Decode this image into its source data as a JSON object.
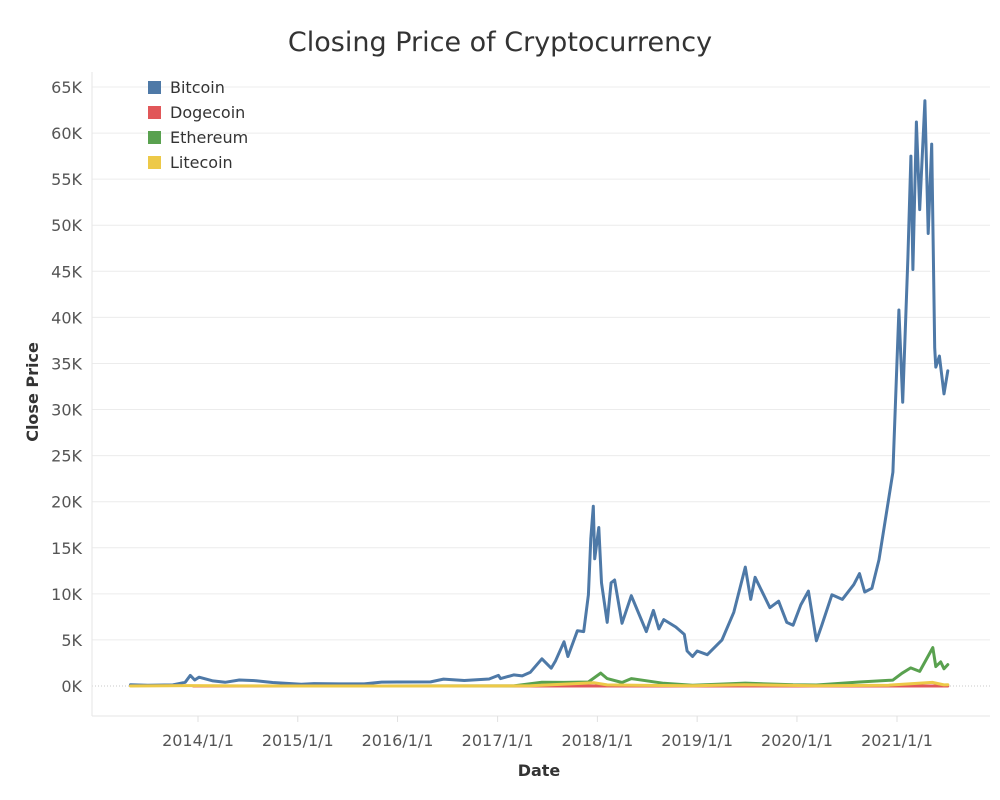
{
  "chart_data": {
    "type": "line",
    "title": "Closing Price of Cryptocurrency",
    "xlabel": "Date",
    "ylabel": "Close Price",
    "x_ticks": [
      "2014/1/1",
      "2015/1/1",
      "2016/1/1",
      "2017/1/1",
      "2018/1/1",
      "2019/1/1",
      "2020/1/1",
      "2021/1/1"
    ],
    "y_ticks": [
      "0K",
      "5K",
      "10K",
      "15K",
      "20K",
      "25K",
      "30K",
      "35K",
      "40K",
      "45K",
      "50K",
      "55K",
      "60K",
      "65K"
    ],
    "xlim": [
      "2013-04-01",
      "2021-07-31"
    ],
    "ylim": [
      -1000,
      65000
    ],
    "grid": true,
    "legend_position": "top-left",
    "series": [
      {
        "name": "Bitcoin",
        "color": "#4e79a7",
        "points": [
          [
            "2013-04-29",
            140
          ],
          [
            "2013-07-01",
            90
          ],
          [
            "2013-10-01",
            120
          ],
          [
            "2013-11-15",
            400
          ],
          [
            "2013-12-04",
            1150
          ],
          [
            "2013-12-20",
            650
          ],
          [
            "2014-01-05",
            950
          ],
          [
            "2014-02-25",
            550
          ],
          [
            "2014-04-10",
            400
          ],
          [
            "2014-06-01",
            650
          ],
          [
            "2014-08-01",
            580
          ],
          [
            "2014-10-01",
            380
          ],
          [
            "2015-01-14",
            180
          ],
          [
            "2015-03-01",
            260
          ],
          [
            "2015-06-01",
            230
          ],
          [
            "2015-09-01",
            230
          ],
          [
            "2015-11-04",
            420
          ],
          [
            "2016-01-01",
            430
          ],
          [
            "2016-05-01",
            450
          ],
          [
            "2016-06-17",
            750
          ],
          [
            "2016-09-01",
            600
          ],
          [
            "2016-12-01",
            760
          ],
          [
            "2017-01-04",
            1150
          ],
          [
            "2017-01-12",
            800
          ],
          [
            "2017-03-01",
            1200
          ],
          [
            "2017-04-01",
            1100
          ],
          [
            "2017-05-01",
            1500
          ],
          [
            "2017-06-12",
            2950
          ],
          [
            "2017-07-16",
            1930
          ],
          [
            "2017-08-01",
            2750
          ],
          [
            "2017-09-01",
            4800
          ],
          [
            "2017-09-15",
            3200
          ],
          [
            "2017-10-20",
            6000
          ],
          [
            "2017-11-12",
            5900
          ],
          [
            "2017-11-29",
            9900
          ],
          [
            "2017-12-08",
            16000
          ],
          [
            "2017-12-17",
            19500
          ],
          [
            "2017-12-22",
            13800
          ],
          [
            "2018-01-06",
            17200
          ],
          [
            "2018-01-16",
            11200
          ],
          [
            "2018-02-06",
            6900
          ],
          [
            "2018-02-20",
            11200
          ],
          [
            "2018-03-05",
            11500
          ],
          [
            "2018-04-01",
            6800
          ],
          [
            "2018-05-05",
            9800
          ],
          [
            "2018-06-29",
            5900
          ],
          [
            "2018-07-25",
            8200
          ],
          [
            "2018-08-14",
            6200
          ],
          [
            "2018-09-01",
            7200
          ],
          [
            "2018-10-15",
            6400
          ],
          [
            "2018-11-15",
            5600
          ],
          [
            "2018-11-25",
            3800
          ],
          [
            "2018-12-15",
            3200
          ],
          [
            "2019-01-01",
            3800
          ],
          [
            "2019-02-07",
            3400
          ],
          [
            "2019-04-02",
            5000
          ],
          [
            "2019-05-15",
            8000
          ],
          [
            "2019-06-26",
            12900
          ],
          [
            "2019-07-16",
            9400
          ],
          [
            "2019-08-01",
            11800
          ],
          [
            "2019-09-24",
            8500
          ],
          [
            "2019-10-26",
            9200
          ],
          [
            "2019-11-25",
            6900
          ],
          [
            "2019-12-18",
            6600
          ],
          [
            "2020-01-15",
            8800
          ],
          [
            "2020-02-12",
            10300
          ],
          [
            "2020-03-12",
            4900
          ],
          [
            "2020-04-01",
            6600
          ],
          [
            "2020-05-08",
            9900
          ],
          [
            "2020-06-15",
            9400
          ],
          [
            "2020-07-27",
            11000
          ],
          [
            "2020-08-17",
            12200
          ],
          [
            "2020-09-05",
            10200
          ],
          [
            "2020-10-01",
            10600
          ],
          [
            "2020-10-27",
            13700
          ],
          [
            "2020-11-25",
            19100
          ],
          [
            "2020-12-17",
            23200
          ],
          [
            "2021-01-08",
            40800
          ],
          [
            "2021-01-22",
            30800
          ],
          [
            "2021-02-10",
            46500
          ],
          [
            "2021-02-21",
            57500
          ],
          [
            "2021-02-28",
            45200
          ],
          [
            "2021-03-13",
            61200
          ],
          [
            "2021-03-25",
            51700
          ],
          [
            "2021-04-13",
            63500
          ],
          [
            "2021-04-25",
            49100
          ],
          [
            "2021-05-08",
            58800
          ],
          [
            "2021-05-19",
            36700
          ],
          [
            "2021-05-23",
            34600
          ],
          [
            "2021-06-05",
            35800
          ],
          [
            "2021-06-22",
            31700
          ],
          [
            "2021-07-06",
            34200
          ]
        ]
      },
      {
        "name": "Dogecoin",
        "color": "#e15759",
        "points": [
          [
            "2013-12-15",
            0.0006
          ],
          [
            "2017-06-01",
            0.003
          ],
          [
            "2018-01-07",
            0.017
          ],
          [
            "2019-06-01",
            0.003
          ],
          [
            "2021-01-28",
            0.03
          ],
          [
            "2021-05-08",
            0.68
          ],
          [
            "2021-07-06",
            0.22
          ]
        ]
      },
      {
        "name": "Ethereum",
        "color": "#59a14f",
        "points": [
          [
            "2015-08-08",
            3
          ],
          [
            "2016-06-17",
            12
          ],
          [
            "2017-03-01",
            16
          ],
          [
            "2017-06-12",
            400
          ],
          [
            "2017-09-01",
            390
          ],
          [
            "2017-11-29",
            430
          ],
          [
            "2018-01-13",
            1400
          ],
          [
            "2018-02-06",
            800
          ],
          [
            "2018-04-01",
            380
          ],
          [
            "2018-05-05",
            800
          ],
          [
            "2018-09-01",
            290
          ],
          [
            "2018-12-15",
            85
          ],
          [
            "2019-06-26",
            320
          ],
          [
            "2019-12-18",
            130
          ],
          [
            "2020-03-12",
            110
          ],
          [
            "2020-08-17",
            430
          ],
          [
            "2020-12-17",
            640
          ],
          [
            "2021-01-19",
            1380
          ],
          [
            "2021-02-20",
            1960
          ],
          [
            "2021-03-25",
            1580
          ],
          [
            "2021-05-12",
            4170
          ],
          [
            "2021-05-23",
            2100
          ],
          [
            "2021-06-10",
            2610
          ],
          [
            "2021-06-22",
            1870
          ],
          [
            "2021-07-06",
            2320
          ]
        ]
      },
      {
        "name": "Litecoin",
        "color": "#edc948",
        "points": [
          [
            "2013-04-29",
            4
          ],
          [
            "2013-11-28",
            45
          ],
          [
            "2014-06-01",
            10
          ],
          [
            "2015-01-14",
            1.5
          ],
          [
            "2016-06-01",
            4
          ],
          [
            "2017-05-01",
            25
          ],
          [
            "2017-12-19",
            360
          ],
          [
            "2018-02-06",
            120
          ],
          [
            "2018-12-15",
            24
          ],
          [
            "2019-06-22",
            140
          ],
          [
            "2020-03-12",
            32
          ],
          [
            "2020-12-01",
            90
          ],
          [
            "2021-05-10",
            390
          ],
          [
            "2021-06-22",
            120
          ],
          [
            "2021-07-06",
            145
          ]
        ]
      }
    ]
  }
}
